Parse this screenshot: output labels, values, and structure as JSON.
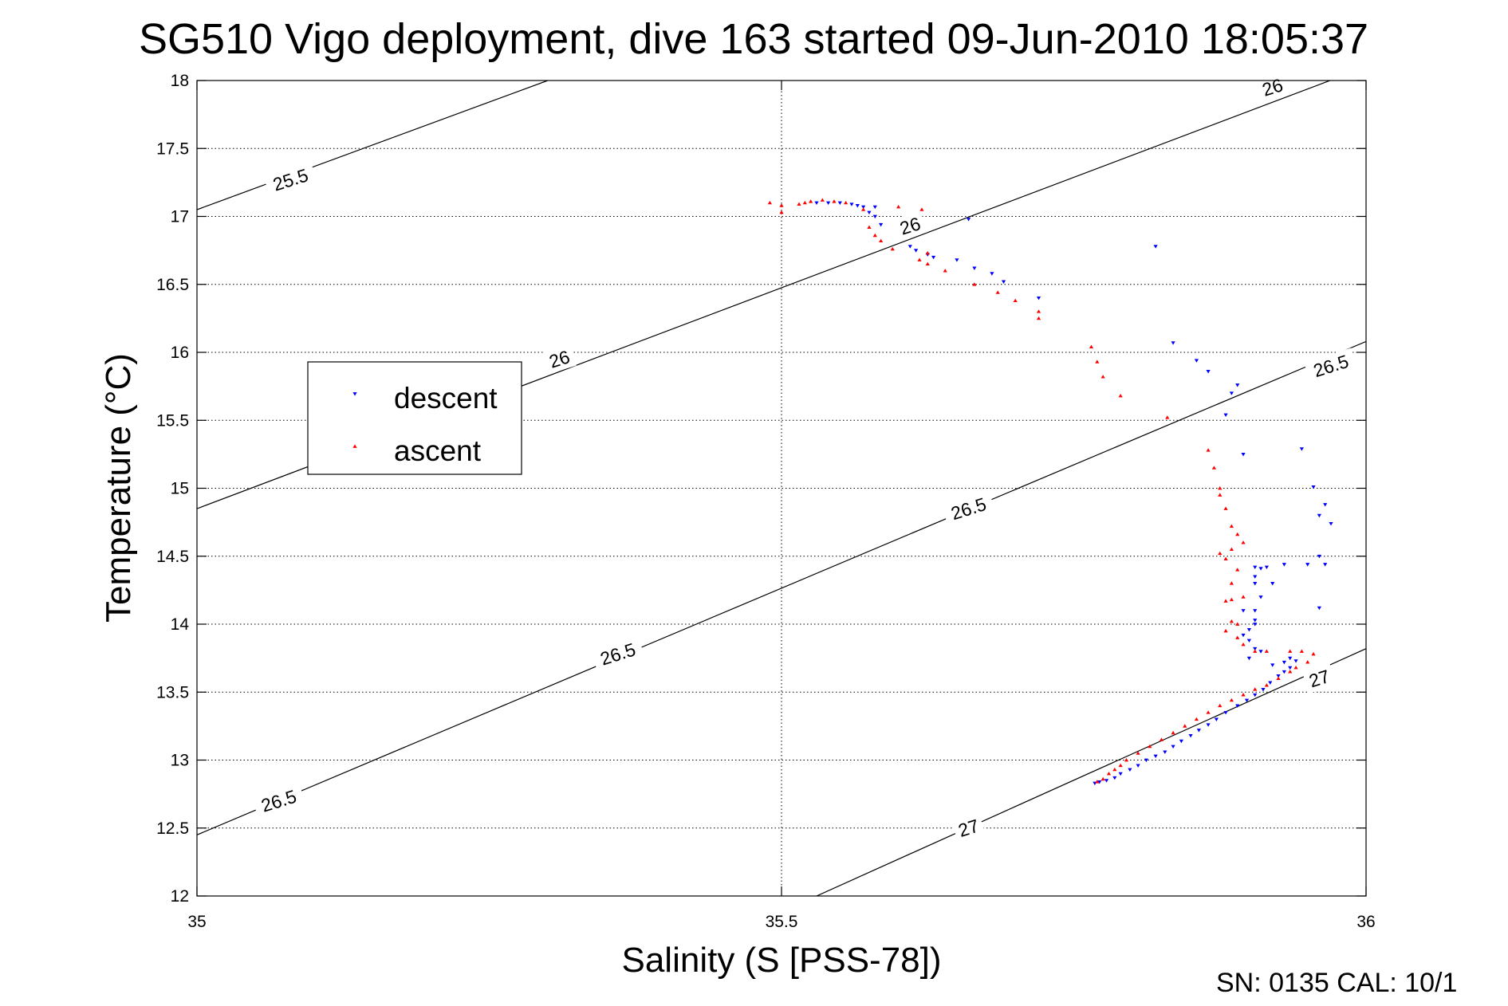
{
  "chart_data": {
    "type": "scatter",
    "title": "SG510 Vigo deployment, dive 163 started 09-Jun-2010 18:05:37",
    "xlabel": "Salinity (S [PSS-78])",
    "ylabel": "Temperature (°C)",
    "xlim": [
      35,
      36
    ],
    "ylim": [
      12,
      18
    ],
    "xticks": [
      "35",
      "35.5",
      "36"
    ],
    "yticks": [
      "12",
      "12.5",
      "13",
      "13.5",
      "14",
      "14.5",
      "15",
      "15.5",
      "16",
      "16.5",
      "17",
      "17.5",
      "18"
    ],
    "grid": true,
    "legend_position": "middle-left",
    "footer": "SN: 0135  CAL: 10/1",
    "density_contours": [
      {
        "level": "25.5",
        "points": [
          [
            35,
            17.05
          ],
          [
            35.3,
            18.0
          ]
        ]
      },
      {
        "level": "26",
        "points": [
          [
            35,
            14.85
          ],
          [
            36,
            18.1
          ]
        ]
      },
      {
        "level": "26.5",
        "points": [
          [
            35,
            12.45
          ],
          [
            36,
            16.08
          ]
        ]
      },
      {
        "level": "27",
        "points": [
          [
            35.53,
            12.0
          ],
          [
            36,
            13.82
          ]
        ]
      }
    ],
    "contour_labels": [
      {
        "text": "25.5",
        "x": 35.08,
        "y": 17.27
      },
      {
        "text": "26",
        "x": 35.31,
        "y": 15.95
      },
      {
        "text": "26",
        "x": 35.61,
        "y": 16.93
      },
      {
        "text": "26",
        "x": 35.92,
        "y": 17.95
      },
      {
        "text": "26.5",
        "x": 35.07,
        "y": 12.7
      },
      {
        "text": "26.5",
        "x": 35.36,
        "y": 13.78
      },
      {
        "text": "26.5",
        "x": 35.66,
        "y": 14.85
      },
      {
        "text": "26.5",
        "x": 35.97,
        "y": 15.9
      },
      {
        "text": "27",
        "x": 35.66,
        "y": 12.5
      },
      {
        "text": "27",
        "x": 35.96,
        "y": 13.6
      }
    ],
    "series": [
      {
        "name": "descent",
        "color": "#0000ff",
        "marker": "triangle-down",
        "points": [
          [
            35.53,
            17.1
          ],
          [
            35.54,
            17.1
          ],
          [
            35.55,
            17.1
          ],
          [
            35.56,
            17.09
          ],
          [
            35.565,
            17.08
          ],
          [
            35.57,
            17.07
          ],
          [
            35.58,
            17.07
          ],
          [
            35.575,
            17.03
          ],
          [
            35.58,
            17.0
          ],
          [
            35.585,
            16.94
          ],
          [
            35.61,
            16.78
          ],
          [
            35.615,
            16.75
          ],
          [
            35.625,
            16.72
          ],
          [
            35.63,
            16.7
          ],
          [
            35.65,
            16.68
          ],
          [
            35.66,
            16.98
          ],
          [
            35.665,
            16.62
          ],
          [
            35.68,
            16.58
          ],
          [
            35.69,
            16.52
          ],
          [
            35.72,
            16.4
          ],
          [
            35.82,
            16.78
          ],
          [
            35.835,
            16.07
          ],
          [
            35.855,
            15.94
          ],
          [
            35.865,
            15.86
          ],
          [
            35.885,
            15.7
          ],
          [
            35.89,
            15.76
          ],
          [
            35.88,
            15.54
          ],
          [
            35.895,
            15.25
          ],
          [
            35.945,
            15.29
          ],
          [
            35.955,
            15.01
          ],
          [
            35.965,
            14.88
          ],
          [
            35.97,
            14.74
          ],
          [
            35.96,
            14.8
          ],
          [
            35.96,
            14.5
          ],
          [
            35.965,
            14.44
          ],
          [
            35.95,
            14.44
          ],
          [
            35.93,
            14.44
          ],
          [
            35.915,
            14.42
          ],
          [
            35.91,
            14.41
          ],
          [
            35.905,
            14.42
          ],
          [
            35.905,
            14.35
          ],
          [
            35.905,
            14.3
          ],
          [
            35.92,
            14.3
          ],
          [
            35.91,
            14.2
          ],
          [
            35.96,
            14.12
          ],
          [
            35.905,
            14.1
          ],
          [
            35.895,
            14.1
          ],
          [
            35.905,
            14.03
          ],
          [
            35.905,
            14.0
          ],
          [
            35.9,
            13.96
          ],
          [
            35.895,
            13.92
          ],
          [
            35.9,
            13.88
          ],
          [
            35.905,
            13.82
          ],
          [
            35.91,
            13.8
          ],
          [
            35.9,
            13.75
          ],
          [
            35.92,
            13.7
          ],
          [
            35.93,
            13.72
          ],
          [
            35.935,
            13.75
          ],
          [
            35.94,
            13.73
          ],
          [
            35.935,
            13.68
          ],
          [
            35.93,
            13.65
          ],
          [
            35.925,
            13.62
          ],
          [
            35.918,
            13.57
          ],
          [
            35.912,
            13.52
          ],
          [
            35.905,
            13.48
          ],
          [
            35.898,
            13.44
          ],
          [
            35.89,
            13.4
          ],
          [
            35.88,
            13.35
          ],
          [
            35.872,
            13.3
          ],
          [
            35.865,
            13.26
          ],
          [
            35.857,
            13.22
          ],
          [
            35.85,
            13.18
          ],
          [
            35.842,
            13.14
          ],
          [
            35.835,
            13.1
          ],
          [
            35.828,
            13.06
          ],
          [
            35.82,
            13.03
          ],
          [
            35.812,
            13.0
          ],
          [
            35.805,
            12.96
          ],
          [
            35.798,
            12.93
          ],
          [
            35.79,
            12.9
          ],
          [
            35.785,
            12.87
          ],
          [
            35.778,
            12.85
          ],
          [
            35.772,
            12.84
          ],
          [
            35.768,
            12.83
          ]
        ]
      },
      {
        "name": "ascent",
        "color": "#ff0000",
        "marker": "triangle-up",
        "points": [
          [
            35.49,
            17.1
          ],
          [
            35.5,
            17.08
          ],
          [
            35.5,
            17.03
          ],
          [
            35.515,
            17.09
          ],
          [
            35.52,
            17.1
          ],
          [
            35.525,
            17.11
          ],
          [
            35.535,
            17.12
          ],
          [
            35.545,
            17.11
          ],
          [
            35.555,
            17.1
          ],
          [
            35.57,
            17.05
          ],
          [
            35.575,
            16.92
          ],
          [
            35.58,
            16.86
          ],
          [
            35.585,
            16.82
          ],
          [
            35.595,
            16.76
          ],
          [
            35.6,
            17.07
          ],
          [
            35.62,
            17.05
          ],
          [
            35.625,
            16.73
          ],
          [
            35.618,
            16.68
          ],
          [
            35.625,
            16.65
          ],
          [
            35.64,
            16.6
          ],
          [
            35.665,
            16.5
          ],
          [
            35.685,
            16.44
          ],
          [
            35.7,
            16.38
          ],
          [
            35.72,
            16.3
          ],
          [
            35.72,
            16.25
          ],
          [
            35.765,
            16.04
          ],
          [
            35.77,
            15.93
          ],
          [
            35.775,
            15.82
          ],
          [
            35.79,
            15.68
          ],
          [
            35.83,
            15.52
          ],
          [
            35.865,
            15.28
          ],
          [
            35.87,
            15.15
          ],
          [
            35.875,
            15.0
          ],
          [
            35.875,
            14.95
          ],
          [
            35.88,
            14.85
          ],
          [
            35.885,
            14.72
          ],
          [
            35.89,
            14.66
          ],
          [
            35.895,
            14.6
          ],
          [
            35.885,
            14.55
          ],
          [
            35.875,
            14.52
          ],
          [
            35.88,
            14.48
          ],
          [
            35.89,
            14.4
          ],
          [
            35.885,
            14.3
          ],
          [
            35.895,
            14.2
          ],
          [
            35.885,
            14.18
          ],
          [
            35.88,
            14.17
          ],
          [
            35.885,
            14.02
          ],
          [
            35.89,
            14.0
          ],
          [
            35.88,
            13.95
          ],
          [
            35.89,
            13.9
          ],
          [
            35.895,
            13.85
          ],
          [
            35.905,
            13.8
          ],
          [
            35.915,
            13.8
          ],
          [
            35.935,
            13.8
          ],
          [
            35.945,
            13.8
          ],
          [
            35.955,
            13.78
          ],
          [
            35.95,
            13.72
          ],
          [
            35.94,
            13.68
          ],
          [
            35.935,
            13.65
          ],
          [
            35.925,
            13.6
          ],
          [
            35.915,
            13.55
          ],
          [
            35.905,
            13.52
          ],
          [
            35.895,
            13.48
          ],
          [
            35.885,
            13.44
          ],
          [
            35.875,
            13.4
          ],
          [
            35.865,
            13.35
          ],
          [
            35.855,
            13.3
          ],
          [
            35.845,
            13.25
          ],
          [
            35.835,
            13.2
          ],
          [
            35.825,
            13.15
          ],
          [
            35.815,
            13.1
          ],
          [
            35.805,
            13.05
          ],
          [
            35.795,
            13.0
          ],
          [
            35.79,
            12.96
          ],
          [
            35.785,
            12.93
          ],
          [
            35.78,
            12.9
          ],
          [
            35.775,
            12.86
          ],
          [
            35.77,
            12.84
          ]
        ]
      }
    ]
  }
}
